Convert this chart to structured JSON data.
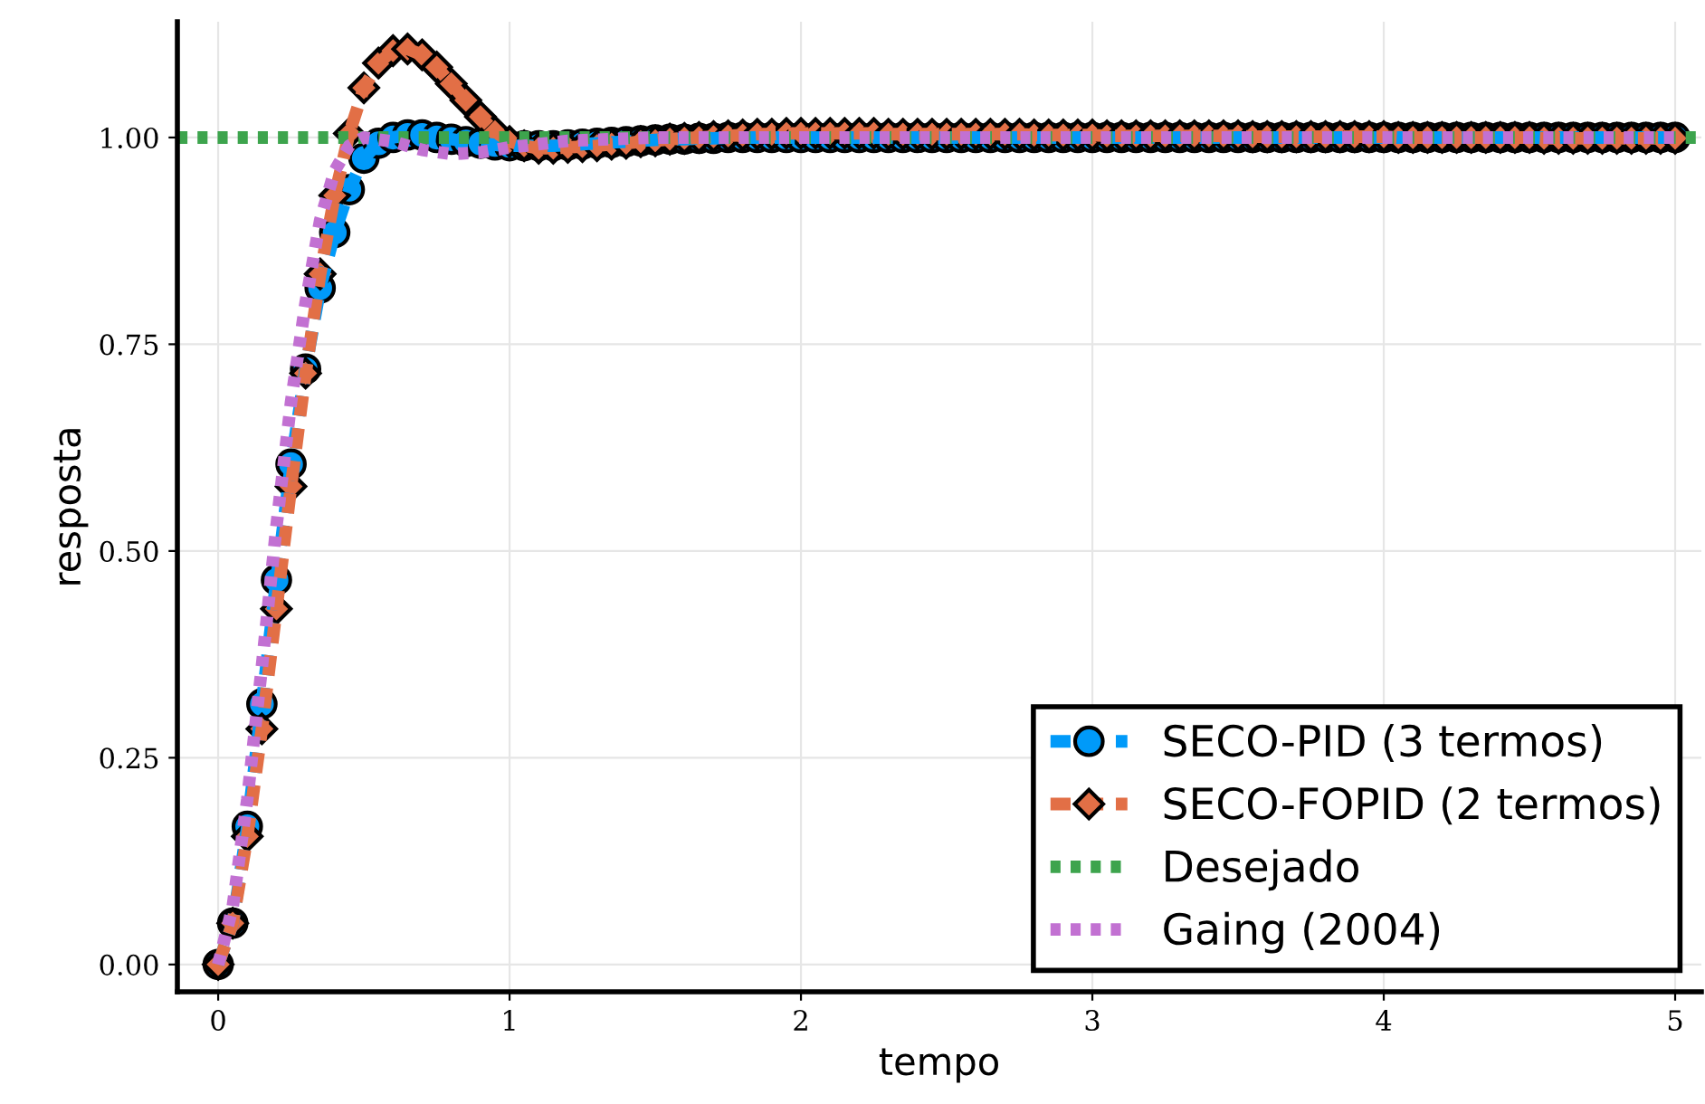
{
  "chart_data": {
    "type": "line",
    "xlabel": "tempo",
    "ylabel": "resposta",
    "x": [
      0,
      0.05,
      0.1,
      0.15,
      0.2,
      0.25,
      0.3,
      0.35,
      0.4,
      0.45,
      0.5,
      0.55,
      0.6,
      0.65,
      0.7,
      0.75,
      0.8,
      0.85,
      0.9,
      0.95,
      1,
      1.05,
      1.1,
      1.15,
      1.2,
      1.25,
      1.3,
      1.35,
      1.4,
      1.45,
      1.5,
      1.55,
      1.6,
      1.65,
      1.7,
      1.75,
      1.8,
      1.85,
      1.9,
      1.95,
      2,
      2.05,
      2.1,
      2.15,
      2.2,
      2.25,
      2.3,
      2.35,
      2.4,
      2.45,
      2.5,
      2.55,
      2.6,
      2.65,
      2.7,
      2.75,
      2.8,
      2.85,
      2.9,
      2.95,
      3,
      3.05,
      3.1,
      3.15,
      3.2,
      3.25,
      3.3,
      3.35,
      3.4,
      3.45,
      3.5,
      3.55,
      3.6,
      3.65,
      3.7,
      3.75,
      3.8,
      3.85,
      3.9,
      3.95,
      4,
      4.05,
      4.1,
      4.15,
      4.2,
      4.25,
      4.3,
      4.35,
      4.4,
      4.45,
      4.5,
      4.55,
      4.6,
      4.65,
      4.7,
      4.75,
      4.8,
      4.85,
      4.9,
      4.95,
      5
    ],
    "series": [
      {
        "name": "SECO-PID (3 termos)",
        "color": "#009af9",
        "marker": "circle",
        "line_style": "dashed",
        "values": [
          0,
          0.05,
          0.167,
          0.315,
          0.465,
          0.605,
          0.72,
          0.818,
          0.885,
          0.937,
          0.975,
          0.993,
          1.0,
          1.003,
          1.003,
          1.0,
          0.998,
          0.995,
          0.993,
          0.991,
          0.99,
          0.99,
          0.99,
          0.99,
          0.991,
          0.992,
          0.993,
          0.994,
          0.995,
          0.996,
          0.997,
          0.998,
          0.998,
          0.999,
          0.999,
          1.0,
          1.0,
          1.0,
          1.0,
          1.0,
          1.0,
          1.0,
          1.0,
          1.0,
          1.0,
          1.0,
          1.0,
          1.0,
          1.0,
          1.0,
          1.0,
          1.0,
          1.0,
          1.0,
          1.0,
          1.0,
          1.0,
          1.0,
          1.0,
          1.0,
          1.0,
          1.0,
          1.0,
          1.0,
          1.0,
          1.0,
          1.0,
          1.0,
          1.0,
          1.0,
          1.0,
          1.0,
          1.0,
          1.0,
          1.0,
          1.0,
          1.0,
          1.0,
          1.0,
          1.0,
          1.0,
          1.0,
          1.0,
          1.0,
          1.0,
          1.0,
          1.0,
          1.0,
          1.0,
          1.0,
          1.0,
          1.0,
          1.0,
          1.0,
          1.0,
          1.0,
          1.0,
          1.0,
          1.0,
          1.0,
          1.0
        ]
      },
      {
        "name": "SECO-FOPID (2 termos)",
        "color": "#e26f46",
        "marker": "diamond",
        "line_style": "dashed",
        "values": [
          0,
          0.05,
          0.155,
          0.285,
          0.43,
          0.578,
          0.715,
          0.835,
          0.93,
          1.005,
          1.06,
          1.09,
          1.105,
          1.107,
          1.1,
          1.085,
          1.065,
          1.045,
          1.025,
          1.007,
          0.995,
          0.99,
          0.987,
          0.987,
          0.988,
          0.989,
          0.99,
          0.992,
          0.993,
          0.995,
          0.996,
          0.998,
          0.999,
          1.0,
          1.001,
          1.002,
          1.003,
          1.004,
          1.004,
          1.005,
          1.005,
          1.005,
          1.005,
          1.005,
          1.005,
          1.005,
          1.004,
          1.004,
          1.004,
          1.004,
          1.004,
          1.004,
          1.004,
          1.004,
          1.004,
          1.004,
          1.003,
          1.003,
          1.003,
          1.003,
          1.003,
          1.002,
          1.002,
          1.002,
          1.002,
          1.002,
          1.002,
          1.002,
          1.002,
          1.002,
          1.002,
          1.001,
          1.001,
          1.001,
          1.001,
          1.001,
          1.001,
          1.001,
          1.001,
          1.001,
          1.001,
          1.0,
          1.0,
          1.0,
          1.0,
          1.0,
          1.0,
          1.0,
          1.0,
          1.0,
          1.0,
          0.999,
          0.999,
          0.999,
          0.999,
          0.999,
          0.999,
          0.999,
          0.999,
          0.999,
          0.999
        ]
      },
      {
        "name": "Desejado",
        "color": "#3da44d",
        "marker": "none",
        "line_style": "dotted",
        "x": [
          -0.14,
          5.09
        ],
        "values": [
          1.0,
          1.0
        ]
      },
      {
        "name": "Gaing (2004)",
        "color": "#c271d2",
        "marker": "none",
        "line_style": "dotted",
        "x": [
          0,
          0.05,
          0.1,
          0.15,
          0.2,
          0.25,
          0.3,
          0.35,
          0.4,
          0.45,
          0.5,
          0.6,
          0.7,
          0.8,
          0.9,
          1.0,
          1.2,
          1.5,
          2,
          3,
          4,
          5
        ],
        "values": [
          0,
          0.07,
          0.2,
          0.36,
          0.53,
          0.68,
          0.8,
          0.9,
          0.96,
          0.99,
          1.0,
          0.995,
          0.985,
          0.98,
          0.982,
          0.988,
          0.996,
          1.0,
          1.0,
          1.0,
          1.0,
          1.0
        ]
      }
    ],
    "xlim": [
      -0.14,
      5.09
    ],
    "ylim": [
      -0.033,
      1.14
    ],
    "xticks": [
      0,
      1,
      2,
      3,
      4,
      5
    ],
    "yticks": [
      {
        "value": 0,
        "label": "0.00"
      },
      {
        "value": 0.25,
        "label": "0.25"
      },
      {
        "value": 0.5,
        "label": "0.50"
      },
      {
        "value": 0.75,
        "label": "0.75"
      },
      {
        "value": 1.0,
        "label": "1.00"
      }
    ],
    "grid": true,
    "legend": "bottom right"
  }
}
